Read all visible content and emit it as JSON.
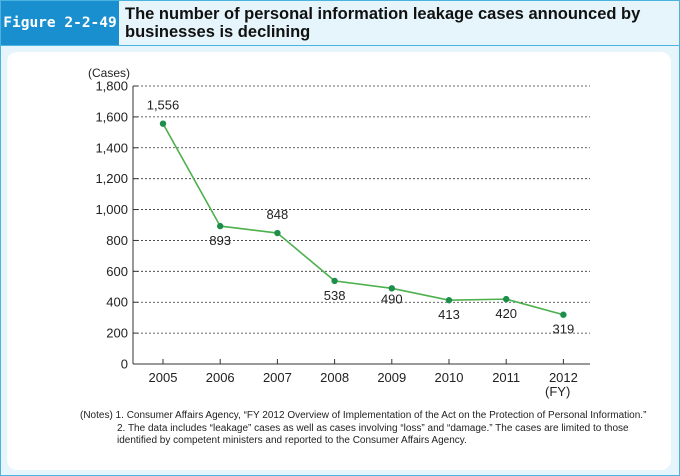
{
  "figure": {
    "label": "Figure 2-2-49",
    "title": "The number of personal information leakage cases announced by businesses is declining"
  },
  "colors": {
    "accent": "#1a8fd0",
    "frame": "#4ab3e0",
    "background": "#e6f5fb",
    "line": "#4db04d",
    "marker": "#1d8f4b"
  },
  "chart_data": {
    "type": "line",
    "title": "",
    "ylabel": "(Cases)",
    "xlabel": "(FY)",
    "x": [
      "2005",
      "2006",
      "2007",
      "2008",
      "2009",
      "2010",
      "2011",
      "2012"
    ],
    "series": [
      {
        "values": [
          1556,
          893,
          848,
          538,
          490,
          413,
          420,
          319
        ]
      }
    ],
    "data_labels": [
      "1,556",
      "893",
      "848",
      "538",
      "490",
      "413",
      "420",
      "319"
    ],
    "ylim": [
      0,
      1800
    ],
    "yticks": [
      "0",
      "200",
      "400",
      "600",
      "800",
      "1,000",
      "1,200",
      "1,400",
      "1,600",
      "1,800"
    ],
    "grid": "horizontal dashed",
    "legend": "none"
  },
  "notes": [
    {
      "prefix": "(Notes) 1.",
      "text": "Consumer Affairs Agency, “FY 2012 Overview of Implementation of the Act on the Protection of Personal Information.”"
    },
    {
      "prefix": "2.",
      "text": "The data includes “leakage” cases as well as cases involving “loss” and “damage.” The cases are limited to those identified by competent ministers and reported to the Consumer Affairs Agency."
    }
  ]
}
